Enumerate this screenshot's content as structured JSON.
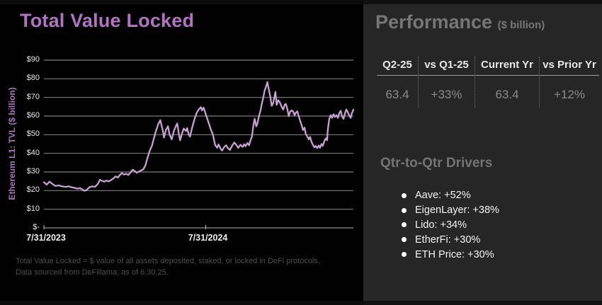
{
  "slide": {
    "title": "Total Value Locked",
    "footnote": "Total Value Locked = $ value of all assets deposited, staked, or locked in DeFi protocols. Data sourced from DeFillama, as of 6.30.25."
  },
  "performance": {
    "heading": "Performance",
    "heading_unit": "($ billion)",
    "table": {
      "columns": [
        {
          "header": "Q2-25",
          "value": "63.4"
        },
        {
          "header": "vs Q1-25",
          "value": "+33%"
        },
        {
          "header": "Current Yr",
          "value": "63.4"
        },
        {
          "header": "vs Prior Yr",
          "value": "+12%"
        }
      ]
    },
    "drivers": {
      "heading": "Qtr-to-Qtr Drivers",
      "items": [
        "Aave: +52%",
        "EigenLayer: +38%",
        "Lido: +34%",
        "EtherFi: +30%",
        "ETH Price: +30%"
      ]
    }
  },
  "colors": {
    "title_purple": "#b273c2",
    "line_purple": "#c9a0d4",
    "right_panel_bg": "#262626",
    "left_bg": "#010101",
    "gridline_gray": "#9c9c9c"
  },
  "chart_data": {
    "type": "line",
    "title": "Total Value Locked",
    "series_name": "Ethereum L1: TVL",
    "ylabel": "Ethereum L1: TVL ($ billion)",
    "ylim": [
      0,
      90
    ],
    "grid": "horizontal",
    "legend": "none",
    "x_range": [
      "7/31/2023",
      "6/30/2025"
    ],
    "y_ticks": [
      {
        "label": "$90",
        "value": 90
      },
      {
        "label": "$80",
        "value": 80
      },
      {
        "label": "$70",
        "value": 70
      },
      {
        "label": "$60",
        "value": 60
      },
      {
        "label": "$50",
        "value": 50
      },
      {
        "label": "$40",
        "value": 40
      },
      {
        "label": "$30",
        "value": 30
      },
      {
        "label": "$20",
        "value": 20
      },
      {
        "label": "$10",
        "value": 10
      },
      {
        "label": "$-",
        "value": 0
      }
    ],
    "x_ticks": [
      {
        "label": "7/31/2023",
        "frac": 0.0
      },
      {
        "label": "7/31/2024",
        "frac": 0.523
      }
    ],
    "points": [
      [
        0.0,
        24.5
      ],
      [
        0.009,
        23.2
      ],
      [
        0.018,
        24.8
      ],
      [
        0.028,
        23.5
      ],
      [
        0.037,
        22.5
      ],
      [
        0.048,
        22.8
      ],
      [
        0.06,
        22.2
      ],
      [
        0.071,
        22.0
      ],
      [
        0.08,
        22.3
      ],
      [
        0.089,
        21.8
      ],
      [
        0.099,
        21.5
      ],
      [
        0.108,
        21.0
      ],
      [
        0.117,
        21.3
      ],
      [
        0.124,
        20.6
      ],
      [
        0.131,
        19.9
      ],
      [
        0.138,
        20.3
      ],
      [
        0.147,
        21.8
      ],
      [
        0.156,
        22.3
      ],
      [
        0.165,
        22.0
      ],
      [
        0.174,
        23.5
      ],
      [
        0.181,
        25.8
      ],
      [
        0.188,
        25.2
      ],
      [
        0.195,
        24.8
      ],
      [
        0.202,
        25.4
      ],
      [
        0.209,
        24.9
      ],
      [
        0.216,
        25.6
      ],
      [
        0.222,
        26.2
      ],
      [
        0.232,
        27.6
      ],
      [
        0.239,
        27.0
      ],
      [
        0.245,
        28.3
      ],
      [
        0.252,
        29.4
      ],
      [
        0.259,
        28.6
      ],
      [
        0.266,
        29.0
      ],
      [
        0.273,
        28.4
      ],
      [
        0.28,
        29.8
      ],
      [
        0.287,
        31.2
      ],
      [
        0.294,
        30.4
      ],
      [
        0.3,
        29.6
      ],
      [
        0.307,
        30.2
      ],
      [
        0.314,
        30.8
      ],
      [
        0.321,
        31.4
      ],
      [
        0.328,
        33.5
      ],
      [
        0.335,
        37.8
      ],
      [
        0.342,
        41.5
      ],
      [
        0.349,
        44.0
      ],
      [
        0.356,
        48.5
      ],
      [
        0.362,
        52.0
      ],
      [
        0.369,
        55.5
      ],
      [
        0.376,
        57.8
      ],
      [
        0.383,
        53.0
      ],
      [
        0.388,
        48.5
      ],
      [
        0.394,
        52.5
      ],
      [
        0.401,
        54.5
      ],
      [
        0.406,
        50.0
      ],
      [
        0.413,
        47.5
      ],
      [
        0.42,
        52.0
      ],
      [
        0.427,
        54.8
      ],
      [
        0.431,
        56.0
      ],
      [
        0.436,
        50.5
      ],
      [
        0.44,
        47.0
      ],
      [
        0.447,
        51.0
      ],
      [
        0.452,
        53.3
      ],
      [
        0.459,
        52.0
      ],
      [
        0.463,
        53.5
      ],
      [
        0.468,
        50.0
      ],
      [
        0.472,
        49.0
      ],
      [
        0.479,
        53.8
      ],
      [
        0.486,
        58.0
      ],
      [
        0.493,
        61.5
      ],
      [
        0.5,
        63.5
      ],
      [
        0.507,
        64.8
      ],
      [
        0.511,
        63.0
      ],
      [
        0.516,
        64.5
      ],
      [
        0.521,
        62.0
      ],
      [
        0.525,
        60.0
      ],
      [
        0.532,
        56.5
      ],
      [
        0.539,
        53.0
      ],
      [
        0.546,
        50.0
      ],
      [
        0.553,
        44.5
      ],
      [
        0.56,
        43.0
      ],
      [
        0.564,
        44.8
      ],
      [
        0.571,
        42.5
      ],
      [
        0.576,
        41.5
      ],
      [
        0.583,
        43.5
      ],
      [
        0.589,
        44.3
      ],
      [
        0.594,
        42.8
      ],
      [
        0.601,
        41.8
      ],
      [
        0.608,
        44.0
      ],
      [
        0.615,
        45.8
      ],
      [
        0.622,
        44.5
      ],
      [
        0.628,
        42.9
      ],
      [
        0.635,
        44.6
      ],
      [
        0.642,
        43.4
      ],
      [
        0.647,
        44.9
      ],
      [
        0.651,
        43.8
      ],
      [
        0.658,
        45.5
      ],
      [
        0.663,
        44.3
      ],
      [
        0.667,
        46.8
      ],
      [
        0.672,
        49.0
      ],
      [
        0.677,
        55.0
      ],
      [
        0.681,
        58.5
      ],
      [
        0.686,
        54.5
      ],
      [
        0.69,
        56.0
      ],
      [
        0.695,
        60.0
      ],
      [
        0.7,
        63.0
      ],
      [
        0.704,
        66.5
      ],
      [
        0.709,
        70.0
      ],
      [
        0.713,
        73.5
      ],
      [
        0.718,
        76.0
      ],
      [
        0.722,
        78.2
      ],
      [
        0.727,
        74.0
      ],
      [
        0.732,
        70.0
      ],
      [
        0.736,
        65.5
      ],
      [
        0.741,
        67.0
      ],
      [
        0.748,
        73.0
      ],
      [
        0.752,
        66.0
      ],
      [
        0.757,
        68.5
      ],
      [
        0.762,
        67.5
      ],
      [
        0.768,
        65.0
      ],
      [
        0.773,
        63.5
      ],
      [
        0.778,
        66.0
      ],
      [
        0.782,
        66.5
      ],
      [
        0.787,
        63.5
      ],
      [
        0.791,
        60.0
      ],
      [
        0.796,
        62.5
      ],
      [
        0.8,
        63.0
      ],
      [
        0.805,
        62.5
      ],
      [
        0.81,
        60.5
      ],
      [
        0.814,
        61.8
      ],
      [
        0.819,
        62.5
      ],
      [
        0.823,
        60.0
      ],
      [
        0.828,
        57.5
      ],
      [
        0.833,
        55.0
      ],
      [
        0.837,
        52.5
      ],
      [
        0.842,
        53.8
      ],
      [
        0.846,
        50.5
      ],
      [
        0.851,
        49.0
      ],
      [
        0.856,
        47.5
      ],
      [
        0.86,
        48.8
      ],
      [
        0.865,
        46.0
      ],
      [
        0.869,
        44.5
      ],
      [
        0.874,
        43.2
      ],
      [
        0.878,
        44.0
      ],
      [
        0.883,
        42.8
      ],
      [
        0.888,
        44.2
      ],
      [
        0.892,
        43.0
      ],
      [
        0.897,
        45.0
      ],
      [
        0.901,
        44.0
      ],
      [
        0.906,
        46.5
      ],
      [
        0.911,
        48.0
      ],
      [
        0.915,
        47.0
      ],
      [
        0.917,
        52.0
      ],
      [
        0.922,
        58.5
      ],
      [
        0.927,
        60.5
      ],
      [
        0.931,
        59.0
      ],
      [
        0.936,
        61.0
      ],
      [
        0.94,
        59.5
      ],
      [
        0.945,
        60.5
      ],
      [
        0.95,
        59.0
      ],
      [
        0.954,
        61.5
      ],
      [
        0.959,
        62.8
      ],
      [
        0.963,
        60.0
      ],
      [
        0.968,
        58.5
      ],
      [
        0.972,
        61.0
      ],
      [
        0.977,
        63.5
      ],
      [
        0.982,
        62.0
      ],
      [
        0.986,
        60.5
      ],
      [
        0.991,
        59.0
      ],
      [
        0.995,
        61.5
      ],
      [
        1.0,
        63.4
      ]
    ]
  }
}
